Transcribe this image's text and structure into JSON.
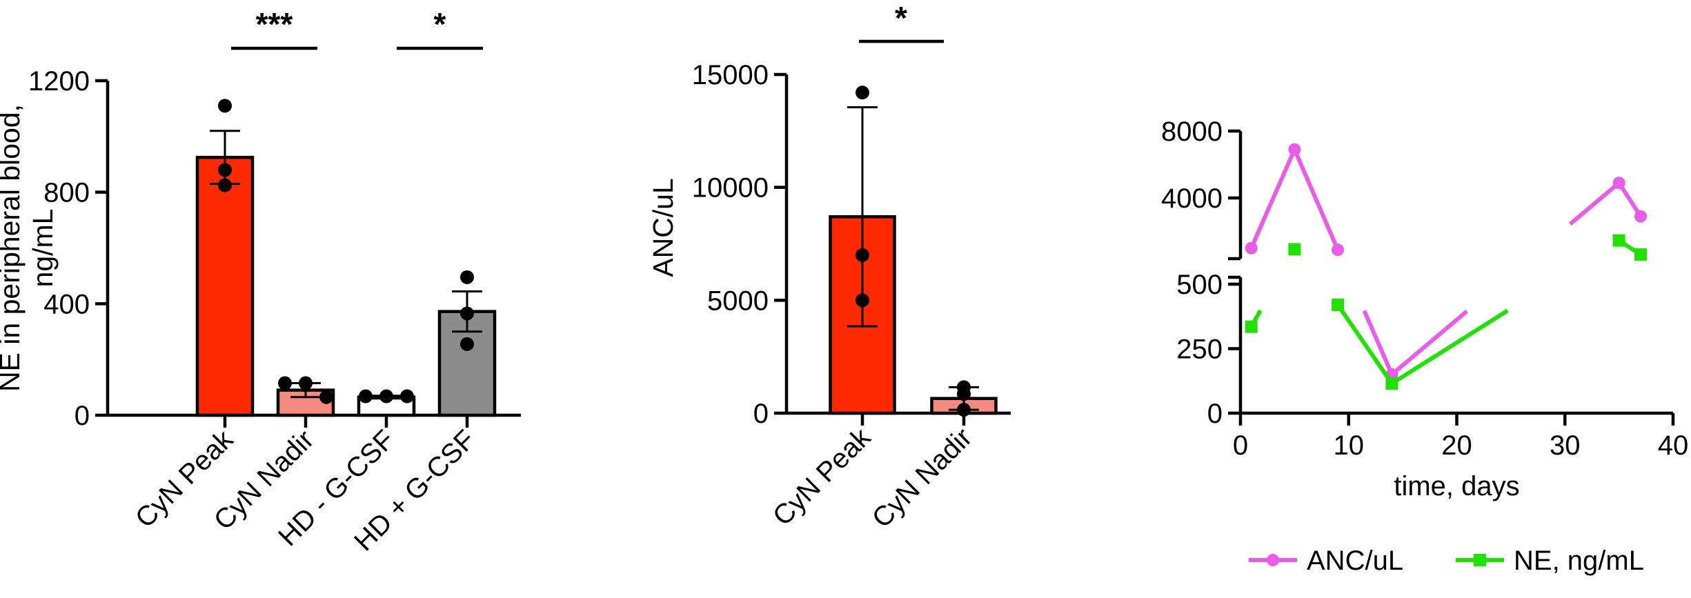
{
  "chart_data": [
    {
      "type": "bar",
      "ylabel": "NE in peripheral blood, ng/mL",
      "ylabel_lines": [
        "NE in peripheral blood,",
        "ng/mL"
      ],
      "ylim": [
        0,
        1200
      ],
      "yticks": [
        0,
        400,
        800,
        1200
      ],
      "categories": [
        "CyN Peak",
        "CyN Nadir",
        "HD - G-CSF",
        "HD + G-CSF"
      ],
      "values": [
        925,
        90,
        65,
        372
      ],
      "sem": [
        95,
        25,
        5,
        72
      ],
      "colors": [
        "#ff2a00",
        "#f58a80",
        "#ffffff",
        "#8c8c8c"
      ],
      "points": [
        [
          1110,
          880,
          825
        ],
        [
          115,
          115,
          65
        ],
        [
          68,
          68,
          68
        ],
        [
          495,
          365,
          255
        ]
      ],
      "significance": [
        {
          "from": "CyN Peak",
          "to": "CyN Nadir",
          "label": "***"
        },
        {
          "from": "HD - G-CSF",
          "to": "HD + G-CSF",
          "label": "*"
        }
      ]
    },
    {
      "type": "bar",
      "ylabel": "ANC/uL",
      "ylim": [
        0,
        15000
      ],
      "yticks": [
        0,
        5000,
        10000,
        15000
      ],
      "categories": [
        "CyN Peak",
        "CyN Nadir"
      ],
      "values": [
        8700,
        650
      ],
      "sd": [
        4850,
        500
      ],
      "colors": [
        "#ff2a00",
        "#f58a80"
      ],
      "points": [
        [
          14200,
          7000,
          5000
        ],
        [
          1150,
          850,
          150
        ]
      ],
      "significance": [
        {
          "from": "CyN Peak",
          "to": "CyN Nadir",
          "label": "*"
        }
      ]
    },
    {
      "type": "line",
      "xlabel": "time, days",
      "xlim": [
        0,
        40
      ],
      "xticks": [
        0,
        10,
        20,
        30,
        40
      ],
      "y_upper_ticks": [
        4000,
        8000
      ],
      "y_lower_ticks": [
        0,
        250,
        500
      ],
      "legend_position": "bottom",
      "series": [
        {
          "name": "ANC/uL",
          "color": "#e85ce8",
          "marker": "circle",
          "x": [
            1,
            5,
            9,
            14,
            35,
            37
          ],
          "y": [
            1000,
            6900,
            900,
            150,
            4900,
            2900
          ]
        },
        {
          "name": "NE, ng/mL",
          "color": "#22e000",
          "marker": "square",
          "x": [
            1,
            5,
            9,
            14,
            35,
            37
          ],
          "y": [
            335,
            930,
            420,
            115,
            1460,
            620
          ]
        }
      ]
    }
  ]
}
